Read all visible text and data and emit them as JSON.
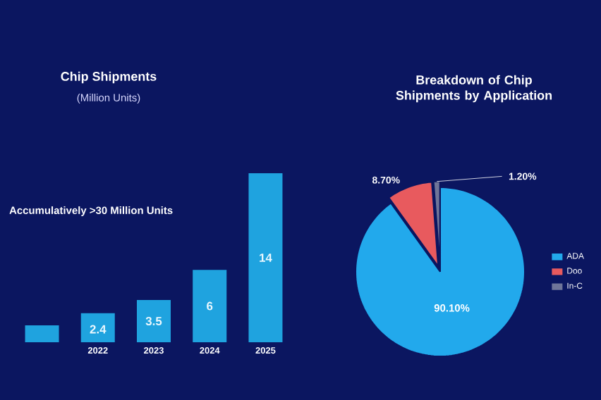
{
  "chart_data": [
    {
      "type": "bar",
      "title": "Chip Shipments",
      "subtitle": "(Million Units)",
      "annotations": [
        "Accumulatively >30 Million Units"
      ],
      "categories": [
        null,
        "2022",
        "2023",
        "2024",
        "2025"
      ],
      "values": [
        1.4,
        2.4,
        3.5,
        6,
        14
      ],
      "value_labels": [
        null,
        "2.4",
        "3.5",
        "6",
        "14"
      ],
      "color": "#1fa3df"
    },
    {
      "type": "pie",
      "title": "Breakdown of Chip Shipments by Application",
      "categories": [
        "ADA",
        "Doo",
        "In-C"
      ],
      "values": [
        90.1,
        8.7,
        1.2
      ],
      "value_labels": [
        "90.10%",
        "8.70%",
        "1.20%"
      ],
      "colors": [
        "#22a9ec",
        "#e85a5e",
        "#6f7599"
      ],
      "legend": "right"
    }
  ]
}
